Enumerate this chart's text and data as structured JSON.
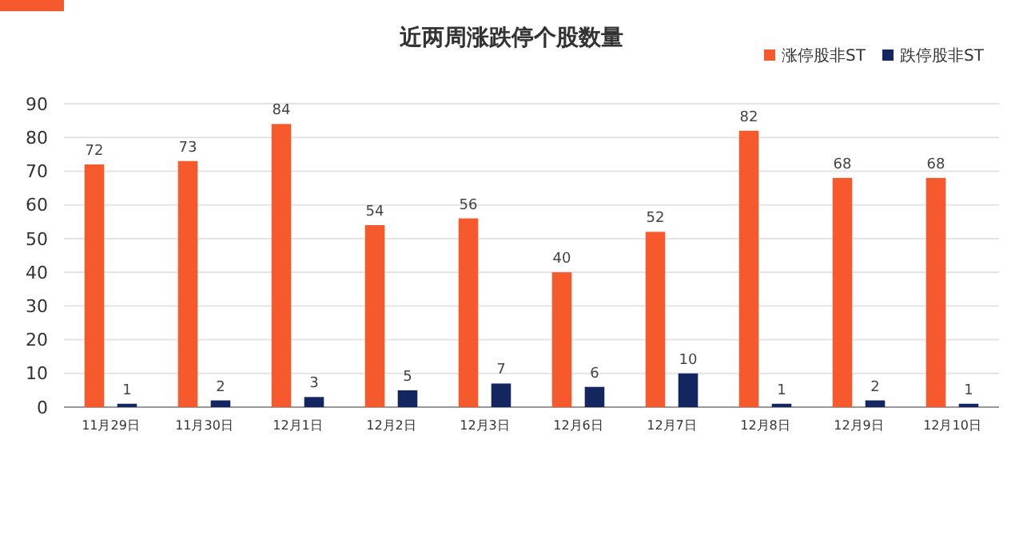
{
  "chart_data": {
    "type": "bar",
    "title": "近两周涨跌停个股数量",
    "categories": [
      "11月29日",
      "11月30日",
      "12月1日",
      "12月2日",
      "12月3日",
      "12月6日",
      "12月7日",
      "12月8日",
      "12月9日",
      "12月10日"
    ],
    "series": [
      {
        "name": "涨停股非ST",
        "color": "#f65a2c",
        "values": [
          72,
          73,
          84,
          54,
          56,
          40,
          52,
          82,
          68,
          68
        ]
      },
      {
        "name": "跌停股非ST",
        "color": "#132660",
        "values": [
          1,
          2,
          3,
          5,
          7,
          6,
          10,
          1,
          2,
          1
        ]
      }
    ],
    "ylim": [
      0,
      90
    ],
    "yticks": [
      0,
      10,
      20,
      30,
      40,
      50,
      60,
      70,
      80,
      90
    ],
    "grid": "y",
    "legend": "top right",
    "data_labels": true
  }
}
